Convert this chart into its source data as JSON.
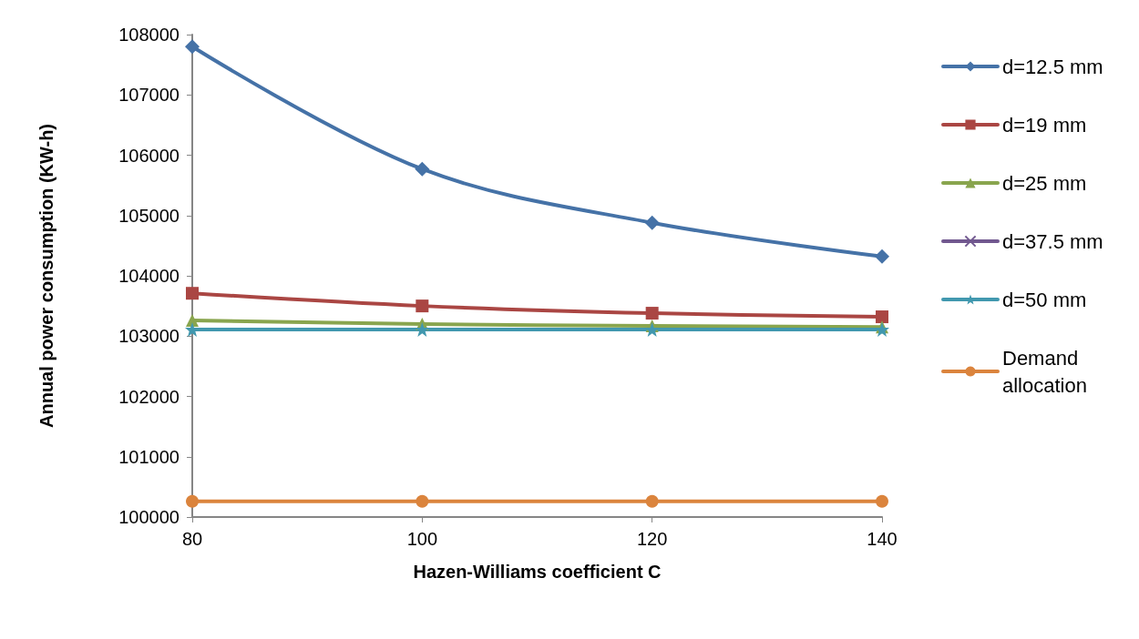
{
  "chart_data": {
    "type": "line",
    "xlabel": "Hazen-Williams coefficient C",
    "ylabel": "Annual power consumption (KW-h)",
    "x": [
      80,
      100,
      120,
      140
    ],
    "series": [
      {
        "name": "d=12.5 mm",
        "color": "#4572a7",
        "marker": "diamond",
        "values": [
          107800,
          105770,
          104880,
          104320
        ]
      },
      {
        "name": "d=19 mm",
        "color": "#aa4643",
        "marker": "square",
        "values": [
          103710,
          103500,
          103380,
          103320
        ]
      },
      {
        "name": "d=25 mm",
        "color": "#89a54e",
        "marker": "triangle",
        "values": [
          103260,
          103200,
          103170,
          103150
        ]
      },
      {
        "name": "d=37.5 mm",
        "color": "#71588f",
        "marker": "cross",
        "values": [
          null,
          null,
          null,
          null
        ]
      },
      {
        "name": "d=50 mm",
        "color": "#4198af",
        "marker": "star",
        "values": [
          103110,
          103110,
          103110,
          103110
        ]
      },
      {
        "name": "Demand allocation",
        "color": "#db843d",
        "marker": "circle",
        "values": [
          100260,
          100260,
          100260,
          100260
        ]
      }
    ],
    "xlim": [
      80,
      140
    ],
    "xticks": [
      80,
      100,
      120,
      140
    ],
    "ylim": [
      100000,
      108000
    ],
    "yticks": [
      100000,
      101000,
      102000,
      103000,
      104000,
      105000,
      106000,
      107000,
      108000
    ],
    "grid": false,
    "legend": "right",
    "line_style": "solid"
  }
}
